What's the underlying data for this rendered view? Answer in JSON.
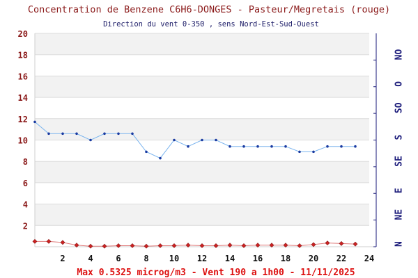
{
  "chart_data": {
    "type": "line",
    "title": "Concentration de Benzene C6H6-DONGES - Pasteur/Megretais (rouge)",
    "subtitle": "Direction du vent 0-350 , sens Nord-Est-Sud-Ouest",
    "footer": "Max 0.5325 microg/m3 - Vent 190  a 1h00 - 11/11/2025",
    "xlim": [
      0,
      24
    ],
    "ylim": [
      0,
      20
    ],
    "x_ticks": [
      "2",
      "4",
      "6",
      "8",
      "10",
      "12",
      "14",
      "16",
      "18",
      "20",
      "22",
      "24"
    ],
    "y_ticks": [
      "2",
      "4",
      "6",
      "8",
      "10",
      "12",
      "14",
      "16",
      "18",
      "20"
    ],
    "right_axis_labels": [
      "N",
      "NE",
      "E",
      "SE",
      "S",
      "SO",
      "O",
      "NO"
    ],
    "series": [
      {
        "color": "#cc2222",
        "x": [
          0,
          1,
          2,
          3,
          4,
          5,
          6,
          7,
          8,
          9,
          10,
          11,
          12,
          13,
          14,
          15,
          16,
          17,
          18,
          19,
          20,
          21,
          22,
          23
        ],
        "values": [
          0.5,
          0.5,
          0.4,
          0.15,
          0.05,
          0.05,
          0.1,
          0.1,
          0.05,
          0.1,
          0.1,
          0.15,
          0.1,
          0.1,
          0.15,
          0.1,
          0.15,
          0.15,
          0.15,
          0.1,
          0.2,
          0.35,
          0.3,
          0.25
        ]
      },
      {
        "color": "#66aaee",
        "x": [
          0,
          1,
          2,
          3,
          4,
          5,
          6,
          7,
          8,
          9,
          10,
          11,
          12,
          13,
          14,
          15,
          16,
          17,
          18,
          19,
          20,
          21,
          22,
          23
        ],
        "values": [
          11.7,
          10.6,
          10.6,
          10.6,
          10.0,
          10.6,
          10.6,
          10.6,
          8.9,
          8.3,
          10.0,
          9.4,
          10.0,
          10.0,
          9.4,
          9.4,
          9.4,
          9.4,
          9.4,
          8.9,
          8.9,
          9.4,
          9.4,
          9.4
        ]
      }
    ],
    "grid": true
  }
}
